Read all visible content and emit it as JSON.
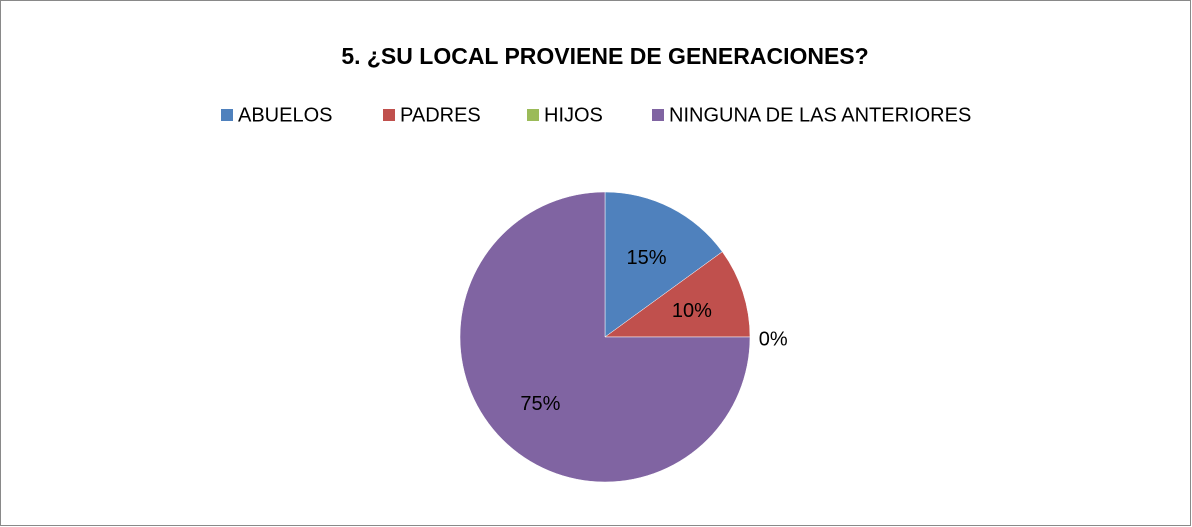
{
  "chart_data": {
    "type": "pie",
    "title": "5. ¿SU LOCAL PROVIENE DE GENERACIONES?",
    "categories": [
      "ABUELOS",
      "PADRES",
      "HIJOS",
      "NINGUNA DE LAS ANTERIORES"
    ],
    "values": [
      15,
      10,
      0,
      75
    ],
    "value_labels": [
      "15%",
      "10%",
      "0%",
      "75%"
    ],
    "colors": [
      "#4f81bd",
      "#c0504d",
      "#9bbb59",
      "#8064a2"
    ],
    "legend": "top"
  }
}
